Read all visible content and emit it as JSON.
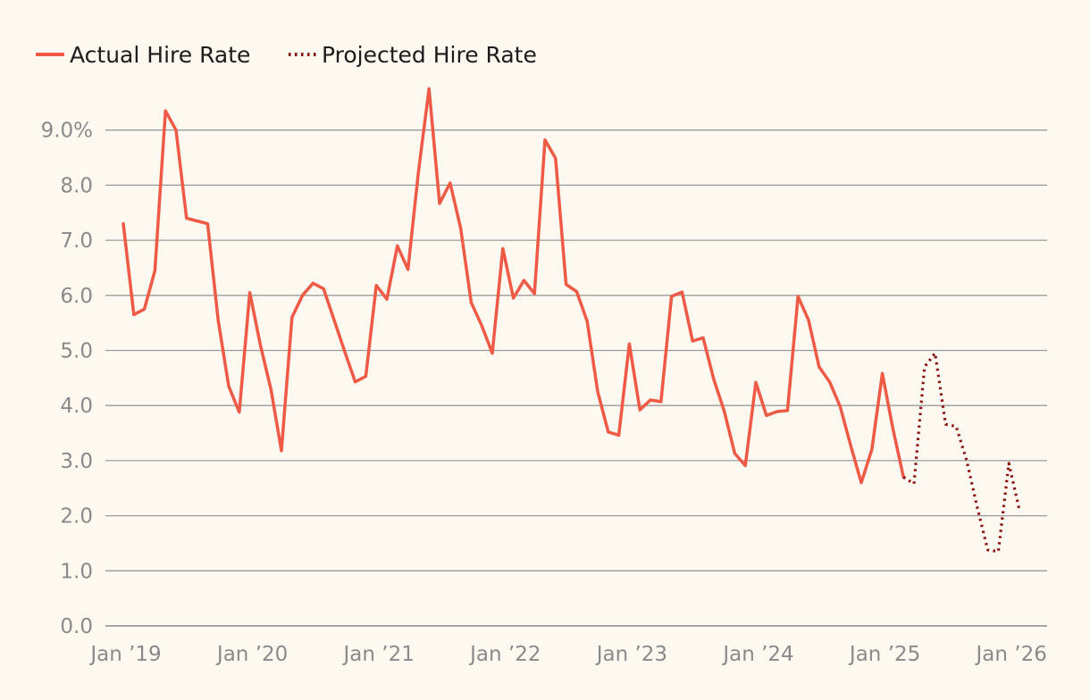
{
  "chart_data": {
    "type": "line",
    "title": "",
    "xlabel": "",
    "ylabel": "",
    "ylim": [
      0,
      10
    ],
    "y_ticks": [
      "0.0",
      "1.0",
      "2.0",
      "3.0",
      "4.0",
      "5.0",
      "6.0",
      "7.0",
      "8.0",
      "9.0%"
    ],
    "y_tick_values": [
      0,
      1,
      2,
      3,
      4,
      5,
      6,
      7,
      8,
      9
    ],
    "x_ticks": [
      "Jan ’19",
      "Jan ’20",
      "Jan ’21",
      "Jan ’22",
      "Jan ’23",
      "Jan ’24",
      "Jan ’25",
      "Jan ’26"
    ],
    "x_tick_months": [
      0,
      12,
      24,
      36,
      48,
      60,
      72,
      84
    ],
    "grid": true,
    "legend_position": "top-left",
    "series": [
      {
        "name": "Actual Hire Rate",
        "style": "solid",
        "color": "#ee5a45",
        "start_month": 0,
        "values": [
          7.3,
          5.65,
          5.75,
          6.45,
          9.35,
          9.0,
          7.4,
          7.35,
          7.3,
          5.55,
          4.35,
          3.88,
          6.05,
          5.1,
          4.3,
          3.18,
          5.6,
          6.0,
          6.22,
          6.12,
          5.55,
          4.98,
          4.43,
          4.53,
          6.18,
          5.93,
          6.9,
          6.47,
          8.25,
          9.75,
          7.67,
          8.04,
          7.22,
          5.87,
          5.45,
          4.95,
          6.85,
          5.95,
          6.27,
          6.03,
          8.82,
          8.49,
          6.2,
          6.07,
          5.53,
          4.25,
          3.52,
          3.46,
          5.12,
          3.92,
          4.1,
          4.07,
          5.98,
          6.06,
          5.17,
          5.23,
          4.48,
          3.9,
          3.13,
          2.91,
          4.42,
          3.82,
          3.89,
          3.91,
          5.98,
          5.55,
          4.7,
          4.43,
          3.98,
          3.27,
          2.6,
          3.2,
          4.58,
          3.58,
          2.7
        ]
      },
      {
        "name": "Projected Hire Rate",
        "style": "dotted",
        "color": "#8b1010",
        "start_month": 74,
        "values": [
          2.7,
          2.58,
          4.7,
          4.95,
          3.66,
          3.62,
          3.0,
          2.15,
          1.38,
          1.35,
          2.95,
          2.1
        ]
      }
    ]
  }
}
